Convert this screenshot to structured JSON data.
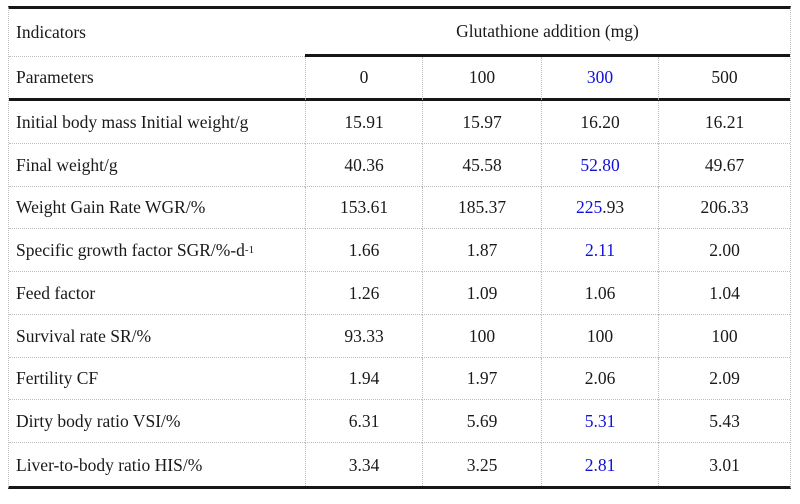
{
  "colors": {
    "highlight_blue": "#1010dc",
    "text_black": "#1a1a1a"
  },
  "table": {
    "corner": {
      "top_label": "Indicators",
      "bottom_label": "Parameters"
    },
    "group_header": "Glutathione addition (mg)",
    "dose_columns": [
      {
        "label": "0",
        "highlight": false
      },
      {
        "label": "100",
        "highlight": false
      },
      {
        "label": "300",
        "highlight": true
      },
      {
        "label": "500",
        "highlight": false
      }
    ],
    "rows": [
      {
        "label": "Initial body mass Initial weight/g",
        "label_sup": "",
        "cells": [
          [
            {
              "t": "15.91",
              "hl": false
            }
          ],
          [
            {
              "t": "15.97",
              "hl": false
            }
          ],
          [
            {
              "t": "16.20",
              "hl": false
            }
          ],
          [
            {
              "t": "16.21",
              "hl": false
            }
          ]
        ]
      },
      {
        "label": "Final weight/g",
        "label_sup": "",
        "cells": [
          [
            {
              "t": "40.36",
              "hl": false
            }
          ],
          [
            {
              "t": "45.58",
              "hl": false
            }
          ],
          [
            {
              "t": "52.80",
              "hl": true
            }
          ],
          [
            {
              "t": "49.67",
              "hl": false
            }
          ]
        ]
      },
      {
        "label": "Weight Gain Rate WGR/%",
        "label_sup": "",
        "cells": [
          [
            {
              "t": "153.61",
              "hl": false
            }
          ],
          [
            {
              "t": "185.37",
              "hl": false
            }
          ],
          [
            {
              "t": "225",
              "hl": true
            },
            {
              "t": ".93",
              "hl": false
            }
          ],
          [
            {
              "t": "206.33",
              "hl": false
            }
          ]
        ]
      },
      {
        "label": "Specific growth factor SGR/%-d",
        "label_sup": "-1",
        "cells": [
          [
            {
              "t": "1.66",
              "hl": false
            }
          ],
          [
            {
              "t": "1.87",
              "hl": false
            }
          ],
          [
            {
              "t": "2.11",
              "hl": true
            }
          ],
          [
            {
              "t": "2.00",
              "hl": false
            }
          ]
        ]
      },
      {
        "label": "Feed factor",
        "label_sup": "",
        "cells": [
          [
            {
              "t": "1.26",
              "hl": false
            }
          ],
          [
            {
              "t": "1.09",
              "hl": false
            }
          ],
          [
            {
              "t": "1.06",
              "hl": false
            }
          ],
          [
            {
              "t": "1.04",
              "hl": false
            }
          ]
        ]
      },
      {
        "label": "Survival rate SR/%",
        "label_sup": "",
        "cells": [
          [
            {
              "t": "93.33",
              "hl": false
            }
          ],
          [
            {
              "t": "100",
              "hl": false
            }
          ],
          [
            {
              "t": "100",
              "hl": false
            }
          ],
          [
            {
              "t": "100",
              "hl": false
            }
          ]
        ]
      },
      {
        "label": "Fertility CF",
        "label_sup": "",
        "cells": [
          [
            {
              "t": "1.94",
              "hl": false
            }
          ],
          [
            {
              "t": "1.97",
              "hl": false
            }
          ],
          [
            {
              "t": "2.06",
              "hl": false
            }
          ],
          [
            {
              "t": "2.09",
              "hl": false
            }
          ]
        ]
      },
      {
        "label": "Dirty body ratio VSI/%",
        "label_sup": "",
        "cells": [
          [
            {
              "t": "6.31",
              "hl": false
            }
          ],
          [
            {
              "t": "5.69",
              "hl": false
            }
          ],
          [
            {
              "t": "5.31",
              "hl": true
            }
          ],
          [
            {
              "t": "5.43",
              "hl": false
            }
          ]
        ]
      },
      {
        "label": "Liver-to-body ratio HIS/%",
        "label_sup": "",
        "cells": [
          [
            {
              "t": "3.34",
              "hl": false
            }
          ],
          [
            {
              "t": "3.25",
              "hl": false
            }
          ],
          [
            {
              "t": "2.81",
              "hl": true
            }
          ],
          [
            {
              "t": "3.01",
              "hl": false
            }
          ]
        ]
      }
    ]
  },
  "chart_data": {
    "type": "table",
    "title": "Glutathione addition (mg)",
    "columns": [
      "Indicators Parameters",
      "0",
      "100",
      "300",
      "500"
    ],
    "rows": [
      [
        "Initial body mass Initial weight/g",
        15.91,
        15.97,
        16.2,
        16.21
      ],
      [
        "Final weight/g",
        40.36,
        45.58,
        52.8,
        49.67
      ],
      [
        "Weight Gain Rate WGR/%",
        153.61,
        185.37,
        225.93,
        206.33
      ],
      [
        "Specific growth factor SGR/%-d-1",
        1.66,
        1.87,
        2.11,
        2.0
      ],
      [
        "Feed factor",
        1.26,
        1.09,
        1.06,
        1.04
      ],
      [
        "Survival rate SR/%",
        93.33,
        100,
        100,
        100
      ],
      [
        "Fertility CF",
        1.94,
        1.97,
        2.06,
        2.09
      ],
      [
        "Dirty body ratio VSI/%",
        6.31,
        5.69,
        5.31,
        5.43
      ],
      [
        "Liver-to-body ratio HIS/%",
        3.34,
        3.25,
        2.81,
        3.01
      ]
    ],
    "highlighted_column": "300"
  }
}
